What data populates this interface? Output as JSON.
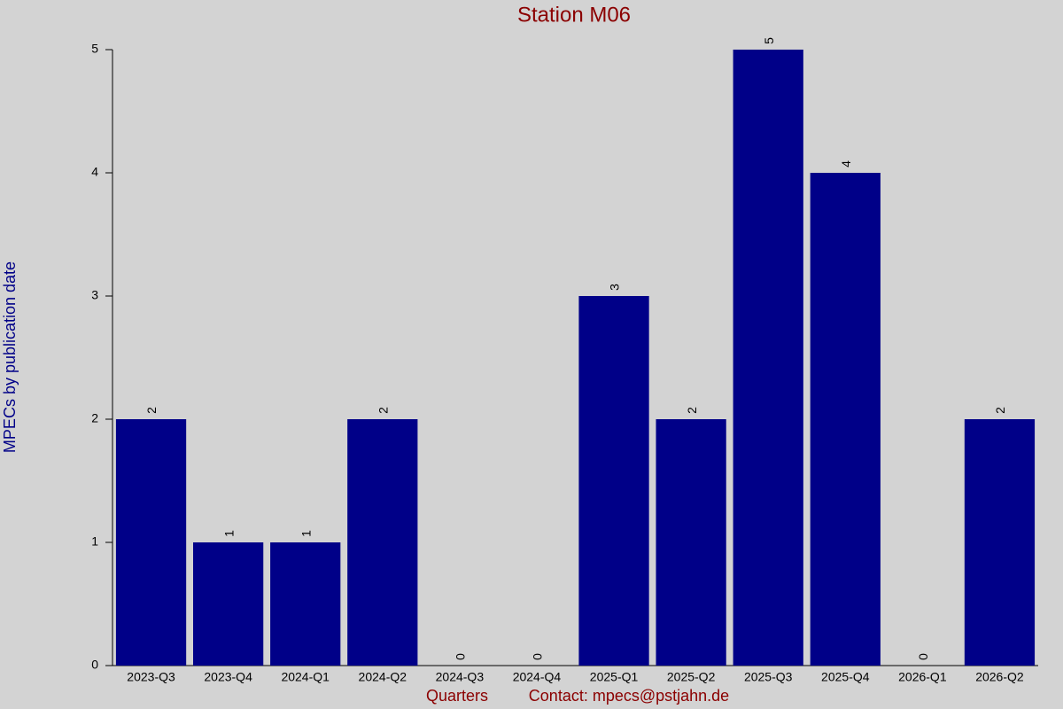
{
  "chart_data": {
    "type": "bar",
    "title": "Station M06",
    "y_label": "MPECs by publication date",
    "x_label": "Quarters",
    "contact": "Contact: mpecs@pstjahn.de",
    "categories": [
      "2023-Q3",
      "2023-Q4",
      "2024-Q1",
      "2024-Q2",
      "2024-Q3",
      "2024-Q4",
      "2025-Q1",
      "2025-Q2",
      "2025-Q3",
      "2025-Q4",
      "2026-Q1",
      "2026-Q2"
    ],
    "values": [
      2,
      1,
      1,
      2,
      0,
      0,
      3,
      2,
      5,
      4,
      0,
      2
    ],
    "color": "#000088",
    "ylim": [
      0,
      5
    ],
    "yticks": [
      0,
      1,
      2,
      3,
      4,
      5
    ],
    "grid": false
  }
}
